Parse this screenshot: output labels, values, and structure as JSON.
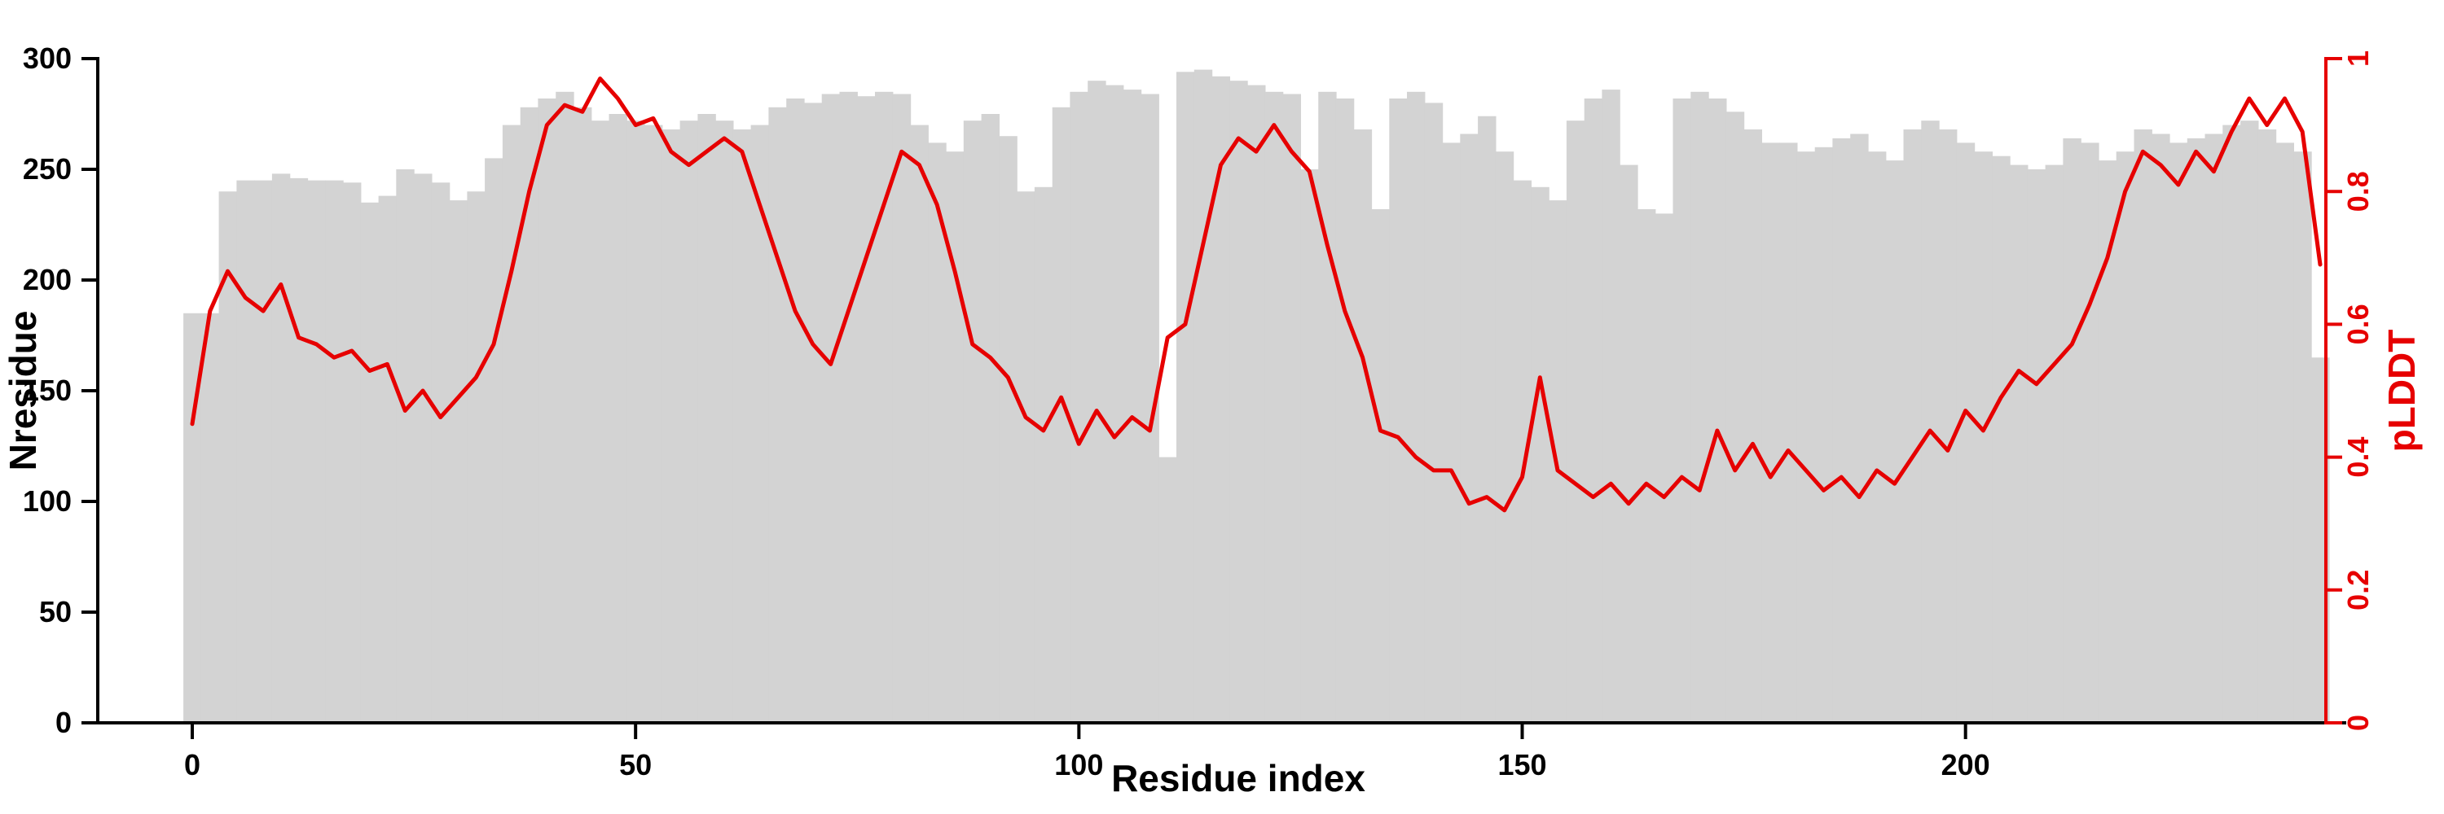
{
  "figure": {
    "background": "#ffffff"
  },
  "chart_data": {
    "type": "bar",
    "subtype": "bar+line dual axis",
    "title": "",
    "xlabel": "Residue index",
    "ylabel_left": "Nresidue",
    "ylabel_right": "pLDDT",
    "xlim": [
      0,
      240
    ],
    "ylim_left": [
      0,
      300
    ],
    "ylim_right": [
      0,
      1
    ],
    "x_ticks": [
      0,
      50,
      100,
      150,
      200
    ],
    "y_left_ticks": [
      0,
      50,
      100,
      150,
      200,
      250,
      300
    ],
    "y_right_ticks": [
      0,
      0.2,
      0.4,
      0.6,
      0.8,
      1
    ],
    "grid": false,
    "legend": "none",
    "x": [
      0,
      2,
      4,
      6,
      8,
      10,
      12,
      14,
      16,
      18,
      20,
      22,
      24,
      26,
      28,
      30,
      32,
      34,
      36,
      38,
      40,
      42,
      44,
      46,
      48,
      50,
      52,
      54,
      56,
      58,
      60,
      62,
      64,
      66,
      68,
      70,
      72,
      74,
      76,
      78,
      80,
      82,
      84,
      86,
      88,
      90,
      92,
      94,
      96,
      98,
      100,
      102,
      104,
      106,
      108,
      110,
      112,
      114,
      116,
      118,
      120,
      122,
      124,
      126,
      128,
      130,
      132,
      134,
      136,
      138,
      140,
      142,
      144,
      146,
      148,
      150,
      152,
      154,
      156,
      158,
      160,
      162,
      164,
      166,
      168,
      170,
      172,
      174,
      176,
      178,
      180,
      182,
      184,
      186,
      188,
      190,
      192,
      194,
      196,
      198,
      200,
      202,
      204,
      206,
      208,
      210,
      212,
      214,
      216,
      218,
      220,
      222,
      224,
      226,
      228,
      230,
      232,
      234,
      236,
      238,
      240
    ],
    "series": [
      {
        "name": "Nresidue",
        "type": "bar",
        "axis": "left",
        "color": "#d3d3d3",
        "values": [
          185,
          185,
          240,
          245,
          245,
          248,
          246,
          245,
          245,
          244,
          235,
          238,
          250,
          248,
          244,
          236,
          240,
          255,
          270,
          278,
          282,
          285,
          278,
          272,
          275,
          272,
          270,
          268,
          272,
          275,
          272,
          268,
          270,
          278,
          282,
          280,
          284,
          285,
          283,
          285,
          284,
          270,
          262,
          258,
          272,
          275,
          265,
          240,
          242,
          278,
          285,
          290,
          288,
          286,
          284,
          120,
          294,
          295,
          292,
          290,
          288,
          285,
          284,
          250,
          285,
          282,
          268,
          232,
          282,
          285,
          280,
          262,
          266,
          274,
          258,
          245,
          242,
          236,
          272,
          282,
          286,
          252,
          232,
          230,
          282,
          285,
          282,
          276,
          268,
          262,
          262,
          258,
          260,
          264,
          266,
          258,
          254,
          268,
          272,
          268,
          262,
          258,
          256,
          252,
          250,
          252,
          264,
          262,
          254,
          258,
          268,
          266,
          262,
          264,
          266,
          270,
          272,
          268,
          262,
          258,
          165
        ]
      },
      {
        "name": "pLDDT",
        "type": "line",
        "axis": "right",
        "color": "#e60000",
        "values": [
          0.45,
          0.62,
          0.68,
          0.64,
          0.62,
          0.66,
          0.58,
          0.57,
          0.55,
          0.56,
          0.53,
          0.54,
          0.47,
          0.5,
          0.46,
          0.49,
          0.52,
          0.57,
          0.68,
          0.8,
          0.9,
          0.93,
          0.92,
          0.97,
          0.94,
          0.9,
          0.91,
          0.86,
          0.84,
          0.86,
          0.88,
          0.86,
          0.78,
          0.7,
          0.62,
          0.57,
          0.54,
          0.62,
          0.7,
          0.78,
          0.86,
          0.84,
          0.78,
          0.68,
          0.57,
          0.55,
          0.52,
          0.46,
          0.44,
          0.49,
          0.42,
          0.47,
          0.43,
          0.46,
          0.44,
          0.58,
          0.6,
          0.72,
          0.84,
          0.88,
          0.86,
          0.9,
          0.86,
          0.83,
          0.72,
          0.62,
          0.55,
          0.44,
          0.43,
          0.4,
          0.38,
          0.38,
          0.33,
          0.34,
          0.32,
          0.37,
          0.52,
          0.38,
          0.36,
          0.34,
          0.36,
          0.33,
          0.36,
          0.34,
          0.37,
          0.35,
          0.44,
          0.38,
          0.42,
          0.37,
          0.41,
          0.38,
          0.35,
          0.37,
          0.34,
          0.38,
          0.36,
          0.4,
          0.44,
          0.41,
          0.47,
          0.44,
          0.49,
          0.53,
          0.51,
          0.54,
          0.57,
          0.63,
          0.7,
          0.8,
          0.86,
          0.84,
          0.81,
          0.86,
          0.83,
          0.89,
          0.94,
          0.9,
          0.94,
          0.89,
          0.69
        ]
      }
    ]
  }
}
